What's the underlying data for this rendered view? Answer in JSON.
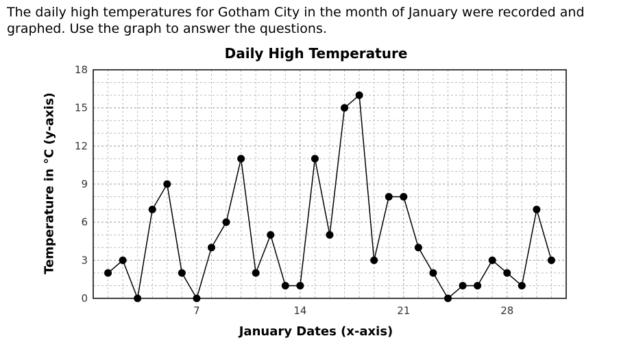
{
  "intro": {
    "line1": "The daily high temperatures for Gotham City in the month of January were recorded and",
    "line2": "graphed.  Use the graph to answer the questions."
  },
  "chart_data": {
    "type": "line",
    "title": "Daily High Temperature",
    "xlabel": "January Dates (x-axis)",
    "ylabel": "Temperature in °C (y-axis)",
    "x": [
      1,
      2,
      3,
      4,
      5,
      6,
      7,
      8,
      9,
      10,
      11,
      12,
      13,
      14,
      15,
      16,
      17,
      18,
      19,
      20,
      21,
      22,
      23,
      24,
      25,
      26,
      27,
      28,
      29,
      30,
      31
    ],
    "values": [
      2,
      3,
      0,
      7,
      9,
      2,
      0,
      4,
      6,
      11,
      2,
      5,
      1,
      1,
      11,
      5,
      15,
      16,
      3,
      8,
      8,
      4,
      2,
      0,
      1,
      1,
      3,
      2,
      1,
      7,
      3
    ],
    "xlim": [
      0,
      32
    ],
    "ylim": [
      0,
      18
    ],
    "xticks": [
      7,
      14,
      21,
      28
    ],
    "yticks": [
      0,
      3,
      6,
      9,
      12,
      15,
      18
    ],
    "grid": true,
    "colors": {
      "line": "#000000",
      "marker": "#000000",
      "grid": "#bbbbbb"
    }
  }
}
